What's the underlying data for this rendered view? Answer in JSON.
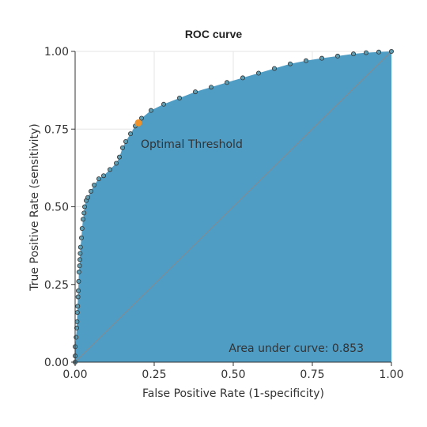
{
  "chart_data": {
    "type": "area",
    "title": "ROC curve",
    "xlabel": "False Positive Rate (1-specificity)",
    "ylabel": "True Positive Rate (sensitivity)",
    "xlim": [
      0,
      1
    ],
    "ylim": [
      0,
      1
    ],
    "x_ticks": [
      "0.00",
      "0.25",
      "0.50",
      "0.75",
      "1.00"
    ],
    "y_ticks": [
      "0.00",
      "0.25",
      "0.50",
      "0.75",
      "1.00"
    ],
    "grid": true,
    "colors": {
      "fill": "#4f9cc4",
      "points": "#5f9db3",
      "point_stroke": "#333333",
      "optimal": "#f0922b",
      "diagonal": "#8a8a8a",
      "grid": "#e6e6e6"
    },
    "series": [
      {
        "points": [
          [
            0.0,
            0.0
          ],
          [
            0.0,
            0.02
          ],
          [
            0.0,
            0.05
          ],
          [
            0.003,
            0.08
          ],
          [
            0.005,
            0.11
          ],
          [
            0.006,
            0.13
          ],
          [
            0.007,
            0.16
          ],
          [
            0.008,
            0.18
          ],
          [
            0.009,
            0.21
          ],
          [
            0.01,
            0.23
          ],
          [
            0.011,
            0.26
          ],
          [
            0.012,
            0.29
          ],
          [
            0.014,
            0.31
          ],
          [
            0.015,
            0.33
          ],
          [
            0.016,
            0.35
          ],
          [
            0.017,
            0.37
          ],
          [
            0.02,
            0.4
          ],
          [
            0.022,
            0.43
          ],
          [
            0.025,
            0.46
          ],
          [
            0.028,
            0.48
          ],
          [
            0.03,
            0.5
          ],
          [
            0.035,
            0.52
          ],
          [
            0.04,
            0.53
          ],
          [
            0.05,
            0.55
          ],
          [
            0.06,
            0.57
          ],
          [
            0.075,
            0.59
          ],
          [
            0.09,
            0.6
          ],
          [
            0.11,
            0.62
          ],
          [
            0.13,
            0.64
          ],
          [
            0.14,
            0.66
          ],
          [
            0.15,
            0.69
          ],
          [
            0.16,
            0.71
          ],
          [
            0.175,
            0.735
          ],
          [
            0.19,
            0.76
          ],
          [
            0.21,
            0.785
          ],
          [
            0.24,
            0.81
          ],
          [
            0.28,
            0.83
          ],
          [
            0.33,
            0.85
          ],
          [
            0.38,
            0.87
          ],
          [
            0.43,
            0.885
          ],
          [
            0.48,
            0.9
          ],
          [
            0.53,
            0.915
          ],
          [
            0.58,
            0.93
          ],
          [
            0.63,
            0.945
          ],
          [
            0.68,
            0.96
          ],
          [
            0.73,
            0.97
          ],
          [
            0.78,
            0.978
          ],
          [
            0.83,
            0.985
          ],
          [
            0.88,
            0.992
          ],
          [
            0.92,
            0.996
          ],
          [
            0.96,
            0.998
          ],
          [
            1.0,
            1.0
          ]
        ]
      }
    ],
    "diagonal": [
      [
        0,
        0
      ],
      [
        1,
        1
      ]
    ],
    "optimal_point": {
      "x": 0.2,
      "y": 0.77
    },
    "annotations": {
      "optimal_label": "Optimal Threshold",
      "auc_label": "Area under curve: 0.853"
    }
  }
}
